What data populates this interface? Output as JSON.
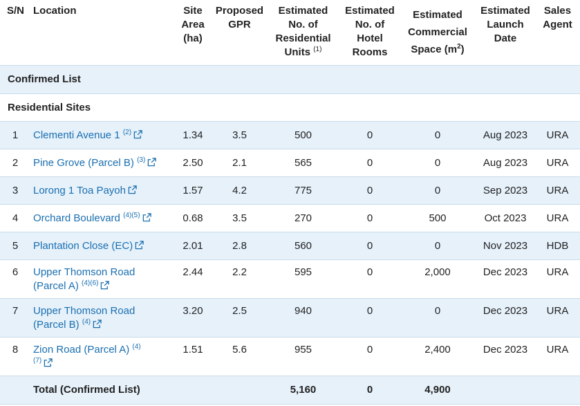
{
  "headers": {
    "sn": "S/N",
    "location": "Location",
    "site_area": [
      "Site",
      "Area",
      "(ha)"
    ],
    "gpr": [
      "Proposed",
      "GPR"
    ],
    "units": [
      "Estimated",
      "No. of",
      "Residential",
      "Units"
    ],
    "units_note": "(1)",
    "hotel": [
      "Estimated",
      "No. of",
      "Hotel",
      "Rooms"
    ],
    "commercial": [
      "Estimated",
      "Commercial",
      "Space (m"
    ],
    "commercial_sup": "2",
    "commercial_close": ")",
    "launch": [
      "Estimated",
      "Launch",
      "Date"
    ],
    "agent": [
      "Sales",
      "Agent"
    ]
  },
  "sections": {
    "confirmed": "Confirmed List",
    "residential": "Residential Sites"
  },
  "rows": [
    {
      "sn": "1",
      "loc1": "Clementi Avenue 1",
      "note": "(2)",
      "area": "1.34",
      "gpr": "3.5",
      "units": "500",
      "hotel": "0",
      "comm": "0",
      "date": "Aug 2023",
      "agent": "URA"
    },
    {
      "sn": "2",
      "loc1": "Pine Grove (Parcel B)",
      "note": "(3)",
      "area": "2.50",
      "gpr": "2.1",
      "units": "565",
      "hotel": "0",
      "comm": "0",
      "date": "Aug 2023",
      "agent": "URA"
    },
    {
      "sn": "3",
      "loc1": "Lorong 1 Toa Payoh",
      "note": "",
      "area": "1.57",
      "gpr": "4.2",
      "units": "775",
      "hotel": "0",
      "comm": "0",
      "date": "Sep 2023",
      "agent": "URA"
    },
    {
      "sn": "4",
      "loc1": "Orchard Boulevard",
      "note": "(4)(5)",
      "area": "0.68",
      "gpr": "3.5",
      "units": "270",
      "hotel": "0",
      "comm": "500",
      "date": "Oct 2023",
      "agent": "URA"
    },
    {
      "sn": "5",
      "loc1": "Plantation Close (EC)",
      "note": "",
      "area": "2.01",
      "gpr": "2.8",
      "units": "560",
      "hotel": "0",
      "comm": "0",
      "date": "Nov 2023",
      "agent": "HDB"
    },
    {
      "sn": "6",
      "loc1": "Upper Thomson Road",
      "loc2": "(Parcel A)",
      "note": "(4)(6)",
      "area": "2.44",
      "gpr": "2.2",
      "units": "595",
      "hotel": "0",
      "comm": "2,000",
      "date": "Dec 2023",
      "agent": "URA"
    },
    {
      "sn": "7",
      "loc1": "Upper Thomson Road",
      "loc2": "(Parcel B)",
      "note": "(4)",
      "area": "3.20",
      "gpr": "2.5",
      "units": "940",
      "hotel": "0",
      "comm": "0",
      "date": "Dec 2023",
      "agent": "URA"
    },
    {
      "sn": "8",
      "loc1": "Zion Road (Parcel A)",
      "note": "(4)",
      "note2": "(7)",
      "area": "1.51",
      "gpr": "5.6",
      "units": "955",
      "hotel": "0",
      "comm": "2,400",
      "date": "Dec 2023",
      "agent": "URA"
    }
  ],
  "total": {
    "label": "Total (Confirmed List)",
    "units": "5,160",
    "hotel": "0",
    "comm": "4,900"
  },
  "icons": {
    "external_link": "external-link-icon"
  },
  "colors": {
    "link": "#1a6fb0",
    "shade": "#e6f1fa",
    "border": "#c9dbe8",
    "text": "#222222"
  }
}
